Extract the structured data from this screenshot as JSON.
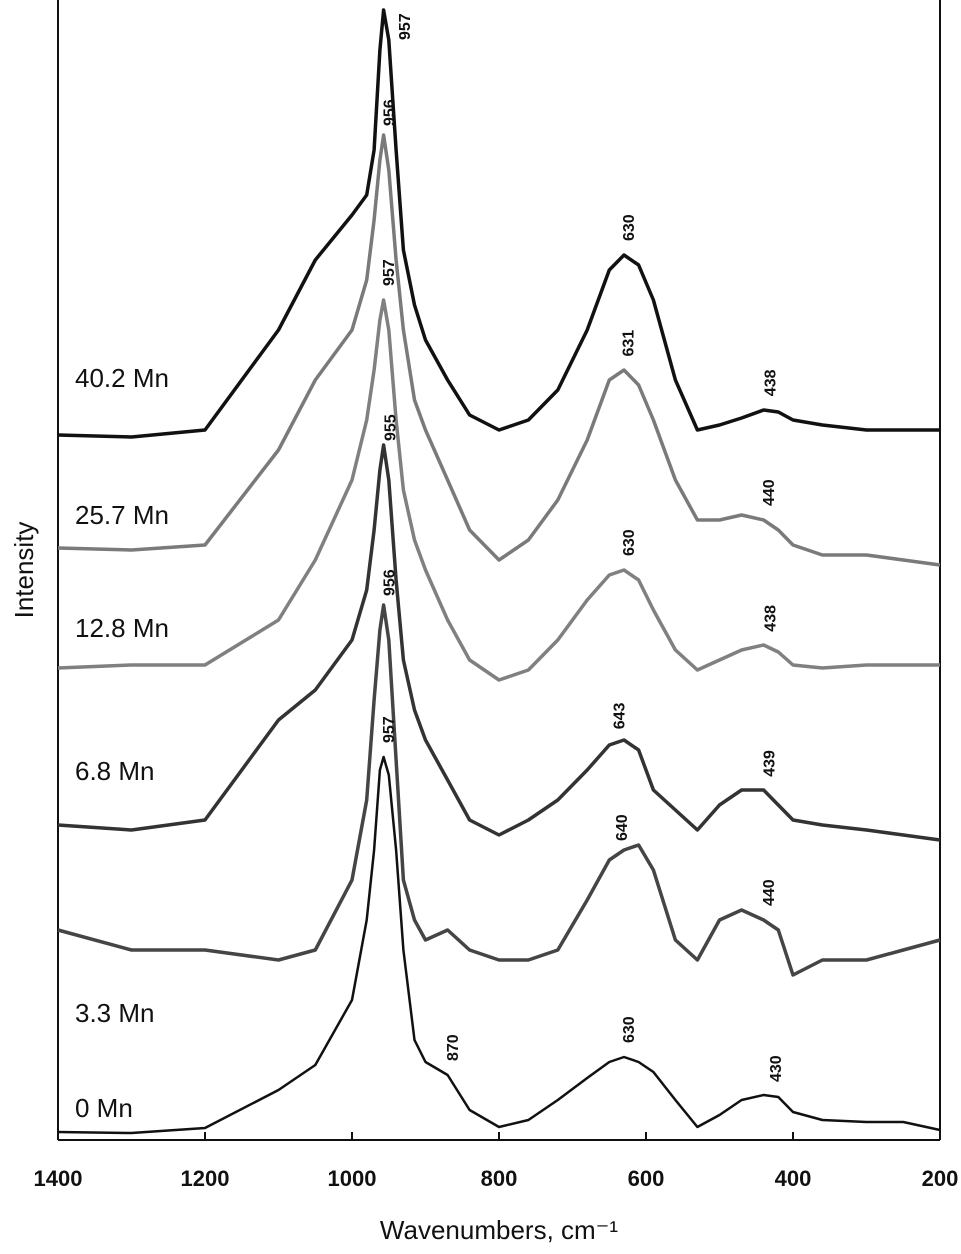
{
  "chart_data": {
    "type": "line",
    "x_label": "Wavenumbers, cm⁻¹",
    "y_label": "Intensity",
    "x": [
      1400,
      1300,
      1200,
      1100,
      1050,
      1000,
      980,
      970,
      962,
      957,
      950,
      940,
      930,
      915,
      900,
      870,
      840,
      800,
      760,
      720,
      680,
      650,
      630,
      610,
      590,
      560,
      530,
      500,
      470,
      440,
      420,
      400,
      360,
      300,
      250,
      200
    ],
    "xlim": [
      1400,
      200
    ],
    "xticks": [
      1400,
      1200,
      1000,
      800,
      600,
      400,
      200
    ],
    "ylim": [
      0,
      1140
    ],
    "series": [
      {
        "name": "40.2 Mn",
        "color": "#111111",
        "peak_labels": [
          957,
          630,
          438
        ],
        "values": [
          705,
          703,
          710,
          810,
          880,
          925,
          945,
          990,
          1090,
          1130,
          1100,
          990,
          890,
          835,
          800,
          760,
          725,
          710,
          720,
          750,
          810,
          870,
          885,
          875,
          840,
          760,
          710,
          715,
          722,
          730,
          728,
          720,
          715,
          710,
          710,
          710
        ]
      },
      {
        "name": "25.7 Mn",
        "color": "#7a7a7a",
        "peak_labels": [
          956,
          631,
          440
        ],
        "values": [
          592,
          590,
          595,
          690,
          760,
          810,
          860,
          920,
          980,
          1005,
          970,
          880,
          810,
          740,
          710,
          660,
          610,
          580,
          600,
          640,
          700,
          760,
          770,
          755,
          720,
          660,
          620,
          620,
          625,
          620,
          610,
          595,
          585,
          585,
          580,
          575
        ]
      },
      {
        "name": "12.8 Mn",
        "color": "#808080",
        "peak_labels": [
          957,
          630,
          438
        ],
        "values": [
          472,
          475,
          475,
          520,
          580,
          660,
          720,
          770,
          820,
          840,
          810,
          720,
          650,
          600,
          570,
          520,
          480,
          460,
          470,
          500,
          540,
          565,
          570,
          560,
          530,
          490,
          470,
          480,
          490,
          495,
          488,
          475,
          472,
          475,
          475,
          475
        ]
      },
      {
        "name": "6.8 Mn",
        "color": "#333333",
        "peak_labels": [
          955,
          643,
          439
        ],
        "values": [
          315,
          310,
          320,
          420,
          450,
          500,
          550,
          610,
          670,
          695,
          660,
          560,
          480,
          430,
          400,
          360,
          320,
          305,
          320,
          340,
          370,
          395,
          400,
          390,
          350,
          330,
          310,
          335,
          350,
          350,
          335,
          320,
          315,
          310,
          305,
          300
        ]
      },
      {
        "name": "3.3 Mn",
        "color": "#454545",
        "peak_labels": [
          956,
          640,
          440
        ],
        "values": [
          210,
          190,
          190,
          180,
          190,
          260,
          340,
          440,
          510,
          535,
          500,
          380,
          260,
          220,
          200,
          210,
          190,
          180,
          180,
          190,
          240,
          280,
          290,
          295,
          270,
          200,
          180,
          220,
          230,
          220,
          210,
          165,
          180,
          180,
          190,
          200
        ]
      },
      {
        "name": "0 Mn",
        "color": "#111111",
        "peak_labels": [
          957,
          870,
          630,
          430
        ],
        "values": [
          8,
          7,
          12,
          50,
          75,
          140,
          220,
          290,
          370,
          383,
          365,
          290,
          190,
          100,
          78,
          65,
          30,
          13,
          20,
          40,
          62,
          78,
          83,
          78,
          68,
          40,
          13,
          25,
          40,
          45,
          43,
          28,
          20,
          18,
          18,
          10
        ]
      }
    ]
  }
}
